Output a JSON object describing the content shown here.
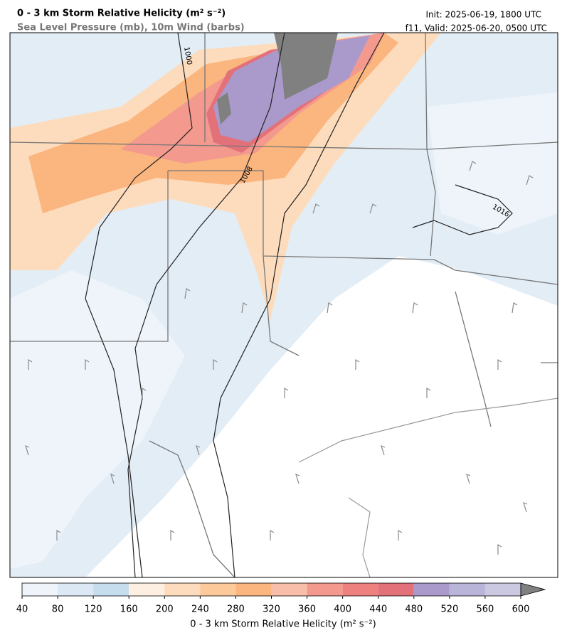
{
  "header": {
    "title": "0 - 3 km Storm Relative Helicity (m² s⁻²)",
    "subtitle": "Sea Level Pressure (mb), 10m Wind (barbs)",
    "init": "Init: 2025-06-19, 1800 UTC",
    "valid": "f11, Valid: 2025-06-20, 0500 UTC"
  },
  "map": {
    "contour_labels": [
      1000,
      1008,
      1016
    ]
  },
  "colorbar": {
    "ticks": [
      40,
      80,
      120,
      160,
      200,
      240,
      280,
      320,
      360,
      400,
      440,
      480,
      520,
      560,
      600
    ],
    "colors": [
      "#eef4fa",
      "#dce9f4",
      "#c5dded",
      "#fdf0e2",
      "#fddcbd",
      "#fcc99a",
      "#fbb57e",
      "#f8beaa",
      "#f4998e",
      "#ef8080",
      "#e3717a",
      "#a99acb",
      "#b9b5d9",
      "#cbc8e2"
    ],
    "extend_color": "#808080",
    "label": "0 - 3 km Storm Relative Helicity (m² s⁻²)"
  }
}
